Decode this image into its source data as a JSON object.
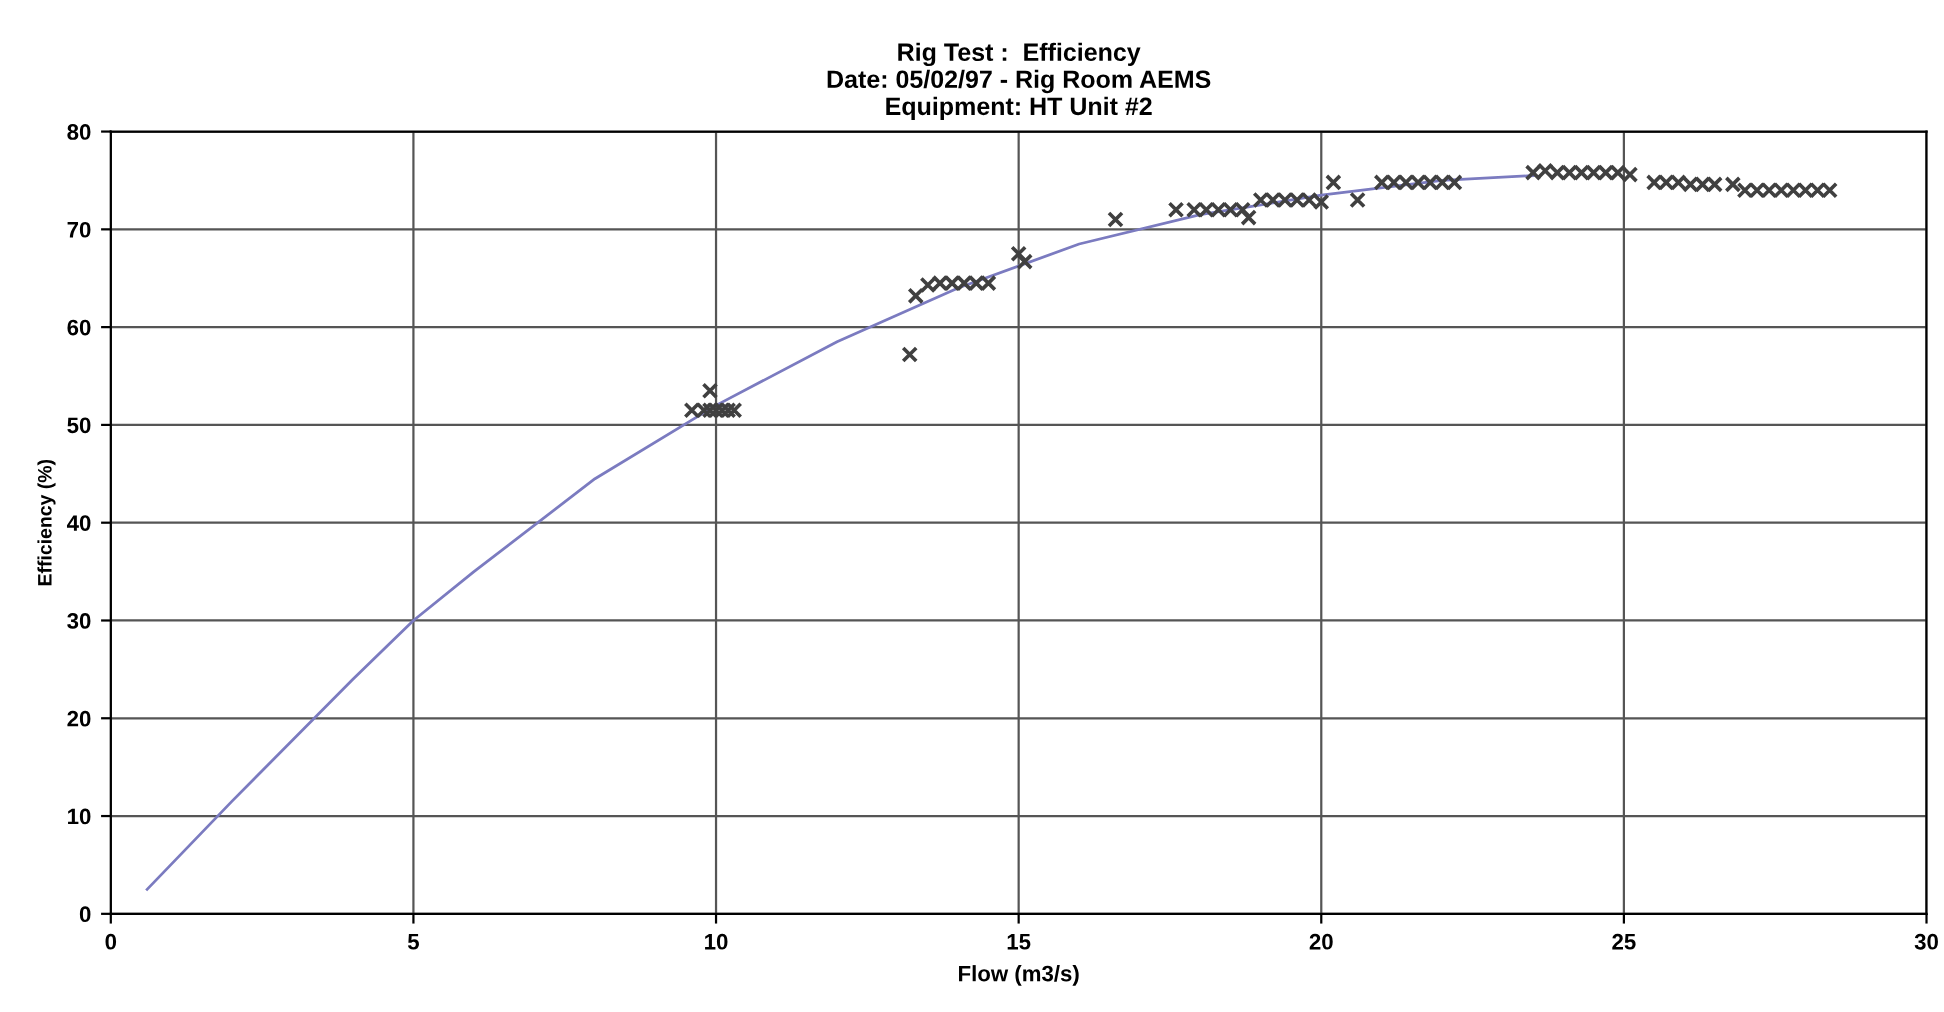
{
  "chart_data": {
    "type": "scatter",
    "title": "Rig Test :  Efficiency\nDate: 05/02/97 - Rig Room AEMS\nEquipment: HT Unit #2",
    "xlabel": "Flow (m3/s)",
    "ylabel": "Efficiency (%)",
    "xlim": [
      0,
      30
    ],
    "ylim": [
      0,
      80
    ],
    "xticks": [
      0,
      5,
      10,
      15,
      20,
      25,
      30
    ],
    "yticks": [
      0,
      10,
      20,
      30,
      40,
      50,
      60,
      70,
      80
    ],
    "grid": true,
    "legend": false,
    "series": [
      {
        "type": "line",
        "color": "#7b7bc0",
        "marker": "none",
        "x": [
          0.6,
          2,
          4,
          5,
          6,
          8,
          10,
          12,
          14,
          16,
          18,
          20,
          22,
          23.5
        ],
        "values": [
          2.5,
          11.5,
          24,
          30,
          35,
          44.5,
          52,
          58.5,
          64,
          68.5,
          71.5,
          73.5,
          75,
          75.5
        ]
      },
      {
        "color": "#404040",
        "marker": "cross",
        "x": [
          9.6,
          9.8,
          9.9,
          10,
          10.1,
          10.2,
          10.3,
          9.9,
          13.2,
          13.3,
          13.5,
          13.7,
          13.9,
          14.1,
          14.3,
          14.5,
          15,
          15.1,
          16.6,
          17.6,
          17.9,
          18.1,
          18.3,
          18.5,
          18.7,
          18.8,
          19,
          19.2,
          19.4,
          19.6,
          19.8,
          20,
          20.2,
          20.6,
          21,
          21.2,
          21.4,
          21.6,
          21.8,
          22,
          22.2,
          23.5,
          23.7,
          23.9,
          24.1,
          24.3,
          24.5,
          24.7,
          24.9,
          25.1,
          25.5,
          25.7,
          25.9,
          26.1,
          26.3,
          26.5,
          26.8,
          27,
          27.2,
          27.4,
          27.6,
          27.8,
          28,
          28.2,
          28.4
        ],
        "values": [
          51.5,
          51.5,
          51.5,
          51.5,
          51.5,
          51.5,
          51.5,
          53.5,
          57.2,
          63.2,
          64.3,
          64.5,
          64.5,
          64.5,
          64.5,
          64.5,
          67.5,
          66.7,
          71,
          72,
          72,
          72,
          72,
          72,
          72,
          71.2,
          73,
          73,
          73,
          73,
          73,
          72.8,
          74.8,
          73,
          74.8,
          74.8,
          74.8,
          74.8,
          74.8,
          74.8,
          74.8,
          75.8,
          76,
          75.8,
          75.8,
          75.8,
          75.8,
          75.8,
          75.8,
          75.6,
          74.8,
          74.8,
          74.8,
          74.6,
          74.6,
          74.6,
          74.6,
          74,
          74,
          74,
          74,
          74,
          74,
          74,
          74
        ]
      }
    ]
  }
}
